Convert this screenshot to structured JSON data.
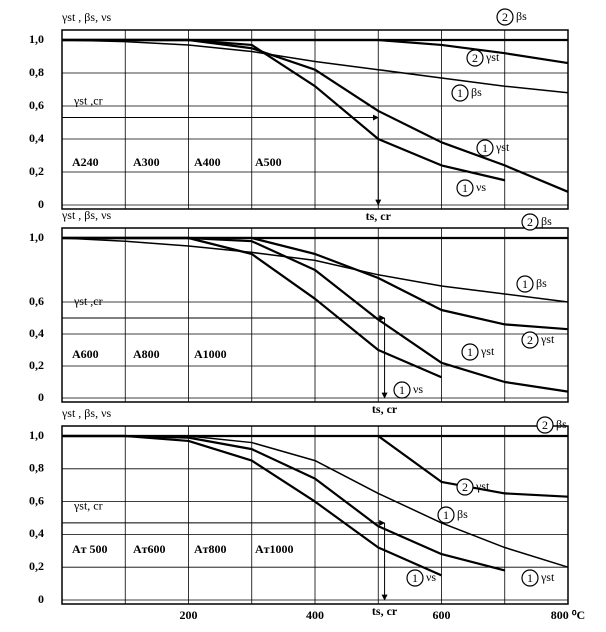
{
  "chart_data": [
    {
      "type": "line",
      "ylabel": "γst , βs, νs",
      "x": [
        0,
        100,
        200,
        300,
        400,
        500,
        600,
        700,
        800
      ],
      "xlim": [
        0,
        800
      ],
      "xgrid": [
        100,
        200,
        300,
        400,
        500,
        600,
        700
      ],
      "ylim": [
        0,
        1
      ],
      "yticks": [
        0,
        {
          "value": 0.2,
          "label": "0,2"
        },
        {
          "value": 0.4,
          "label": "0,4"
        },
        {
          "value": 0.6,
          "label": "0,6"
        },
        {
          "value": 0.8,
          "label": "0,8"
        },
        {
          "value": 1,
          "label": "1,0"
        }
      ],
      "series": [
        {
          "curve": "2",
          "name": "βs",
          "color": "#000000",
          "values": [
            1,
            1,
            1,
            1,
            1,
            1,
            1,
            1,
            1
          ]
        },
        {
          "curve": "2",
          "name": "γst",
          "color": "#000000",
          "values": [
            1,
            1,
            1,
            1,
            1,
            1,
            0.97,
            0.92,
            0.86
          ]
        },
        {
          "curve": "1",
          "name": "βs",
          "color": "#000000",
          "values": [
            1,
            0.99,
            0.97,
            0.93,
            0.87,
            0.82,
            0.77,
            0.72,
            0.68
          ]
        },
        {
          "curve": "1",
          "name": "γst",
          "color": "#000000",
          "values": [
            1,
            1,
            1,
            0.95,
            0.82,
            0.57,
            0.38,
            0.24,
            0.08
          ]
        },
        {
          "curve": "1",
          "name": "νs",
          "color": "#000000",
          "values": [
            1,
            1,
            1,
            0.97,
            0.72,
            0.4,
            0.24,
            0.15,
            null
          ]
        }
      ],
      "grades": [
        "A240",
        "A300",
        "A400",
        "A500"
      ],
      "critical": {
        "y": 0.53,
        "x": 500,
        "y_label": "γst ,cr",
        "x_label": "ts, cr"
      }
    },
    {
      "type": "line",
      "ylabel": "γst , βs, νs",
      "x": [
        0,
        100,
        200,
        300,
        400,
        500,
        600,
        700,
        800
      ],
      "xlim": [
        0,
        800
      ],
      "xgrid": [
        100,
        200,
        300,
        400,
        500,
        600,
        700
      ],
      "ylim": [
        0,
        1
      ],
      "yticks": [
        0,
        {
          "value": 0.2,
          "label": "0,2"
        },
        {
          "value": 0.4,
          "label": "0,4"
        },
        {
          "value": 0.6,
          "label": "0,6"
        },
        {
          "value": 1,
          "label": "1,0"
        }
      ],
      "series": [
        {
          "curve": "2",
          "name": "βs",
          "color": "#000000",
          "values": [
            1,
            1,
            1,
            1,
            1,
            1,
            1,
            1,
            1
          ]
        },
        {
          "curve": "2",
          "name": "γst",
          "color": "#000000",
          "values": [
            1,
            1,
            1,
            1,
            0.9,
            0.75,
            0.55,
            0.46,
            0.43
          ]
        },
        {
          "curve": "1",
          "name": "βs",
          "color": "#000000",
          "values": [
            1,
            0.98,
            0.95,
            0.91,
            0.86,
            0.77,
            0.7,
            0.65,
            0.6
          ]
        },
        {
          "curve": "1",
          "name": "γst",
          "color": "#000000",
          "values": [
            1,
            1,
            1,
            0.98,
            0.8,
            0.49,
            0.22,
            0.1,
            0.04
          ]
        },
        {
          "curve": "1",
          "name": "νs",
          "color": "#000000",
          "values": [
            1,
            1,
            1,
            0.9,
            0.62,
            0.3,
            0.13,
            null,
            null
          ]
        }
      ],
      "grades": [
        "A600",
        "A800",
        "A1000"
      ],
      "critical": {
        "y": 0.5,
        "x": 510,
        "y_label": "γst ,cr",
        "x_label": "ts, cr"
      }
    },
    {
      "type": "line",
      "ylabel": "γst , βs, νs",
      "x": [
        0,
        100,
        200,
        300,
        400,
        500,
        600,
        700,
        800
      ],
      "xlim": [
        0,
        800
      ],
      "xgrid": [
        100,
        200,
        300,
        400,
        500,
        600,
        700
      ],
      "xticks": [
        200,
        400,
        600,
        {
          "value": 800,
          "label": "800 ⁰C"
        }
      ],
      "ylim": [
        0,
        1
      ],
      "yticks": [
        0,
        {
          "value": 0.2,
          "label": "0,2"
        },
        {
          "value": 0.4,
          "label": "0,4"
        },
        {
          "value": 0.6,
          "label": "0,6"
        },
        {
          "value": 0.8,
          "label": "0,8"
        },
        {
          "value": 1,
          "label": "1,0"
        }
      ],
      "series": [
        {
          "curve": "2",
          "name": "βs",
          "color": "#000000",
          "values": [
            1,
            1,
            1,
            1,
            1,
            1,
            1,
            1,
            1
          ]
        },
        {
          "curve": "2",
          "name": "γst",
          "color": "#000000",
          "values": [
            null,
            null,
            null,
            null,
            null,
            1,
            0.72,
            0.65,
            0.63
          ]
        },
        {
          "curve": "1",
          "name": "βs",
          "color": "#000000",
          "values": [
            1,
            1,
            1,
            0.96,
            0.85,
            0.65,
            0.47,
            0.32,
            0.2
          ]
        },
        {
          "curve": "1",
          "name": "γst",
          "color": "#000000",
          "values": [
            1,
            1,
            0.99,
            0.92,
            0.74,
            0.45,
            0.28,
            0.18,
            null
          ]
        },
        {
          "curve": "1",
          "name": "νs",
          "color": "#000000",
          "values": [
            1,
            1,
            0.97,
            0.85,
            0.6,
            0.32,
            0.15,
            null,
            null
          ]
        }
      ],
      "grades": [
        "Aт 500",
        "Aт600",
        "Aт800",
        "Aт1000"
      ],
      "critical": {
        "y": 0.47,
        "x": 510,
        "y_label": "γst, cr",
        "x_label": "ts, cr"
      }
    }
  ]
}
